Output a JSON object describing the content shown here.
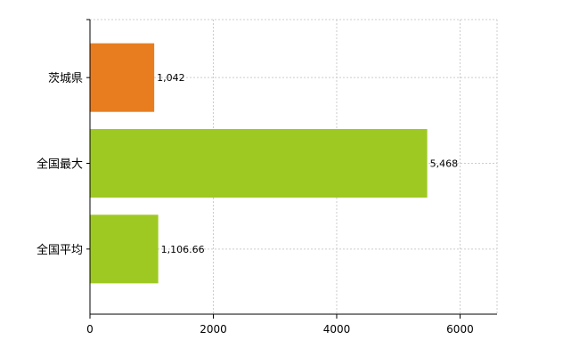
{
  "chart_data": {
    "type": "bar",
    "orientation": "horizontal",
    "categories": [
      "茨城県",
      "全国最大",
      "全国平均"
    ],
    "values": [
      1042,
      5468,
      1106.66
    ],
    "value_labels": [
      "1,042",
      "5,468",
      "1,106.66"
    ],
    "colors": [
      "#e87d20",
      "#9ec922",
      "#9ec922"
    ],
    "xlim": [
      0,
      6600
    ],
    "xticks": [
      0,
      2000,
      4000,
      6000
    ],
    "xtick_labels": [
      "0",
      "2000",
      "4000",
      "6000"
    ],
    "grid": true,
    "title": "",
    "xlabel": "",
    "ylabel": ""
  }
}
